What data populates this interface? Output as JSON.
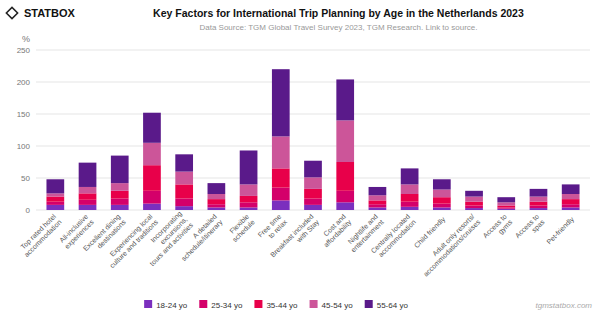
{
  "chart_data": {
    "type": "bar",
    "stacked": true,
    "title": "Key Factors for International Trip Planning by Age in the Netherlands 2023",
    "subtitle": "Data Source: TGM Global Travel Survey 2023, TGM Research. Link to source.",
    "y_label": "%",
    "annotations": [
      "STATBOX",
      "tgmstatbox.com"
    ],
    "categories": [
      "Top rated hotel\naccommodation",
      "All-inclusive\nexperiences",
      "Excellent dining\ndestinations",
      "Experiencing local\nculture and traditions",
      "Incorporating\nexcursions,\ntours and activities",
      "A detailed\nschedule/itinerary",
      "Flexible\nschedule",
      "Free time\nto relax",
      "Breakfast included\nwith Stay",
      "Cost and\naffordability",
      "Nightlife and\nentertainment",
      "Centrally located\naccommodation",
      "Child friendly",
      "Adult only resorts/\naccommodations/cruises",
      "Access to\ngyms",
      "Access to\nspas",
      "Pet-friendly"
    ],
    "series": [
      {
        "name": "18-24 yo",
        "color": "#7b2fbe",
        "values": [
          8,
          8,
          8,
          10,
          6,
          4,
          4,
          15,
          8,
          12,
          4,
          5,
          4,
          3,
          2,
          3,
          4
        ]
      },
      {
        "name": "25-34 yo",
        "color": "#d4006a",
        "values": [
          5,
          8,
          10,
          20,
          12,
          5,
          8,
          20,
          10,
          18,
          5,
          8,
          6,
          4,
          2,
          4,
          5
        ]
      },
      {
        "name": "35-44 yo",
        "color": "#e8004a",
        "values": [
          8,
          10,
          12,
          40,
          22,
          8,
          10,
          30,
          15,
          45,
          6,
          12,
          10,
          6,
          3,
          6,
          8
        ]
      },
      {
        "name": "45-54 yo",
        "color": "#cc5599",
        "values": [
          5,
          10,
          12,
          35,
          20,
          8,
          18,
          50,
          18,
          65,
          8,
          15,
          12,
          8,
          5,
          8,
          8
        ]
      },
      {
        "name": "55-64 yo",
        "color": "#5a1a8a",
        "values": [
          22,
          38,
          43,
          47,
          27,
          17,
          53,
          105,
          26,
          64,
          13,
          25,
          16,
          9,
          8,
          12,
          15
        ]
      }
    ],
    "ylim": [
      0,
      250
    ],
    "yticks": [
      0,
      50,
      100,
      150,
      200,
      250
    ],
    "grid": true,
    "legend": "bottom"
  }
}
